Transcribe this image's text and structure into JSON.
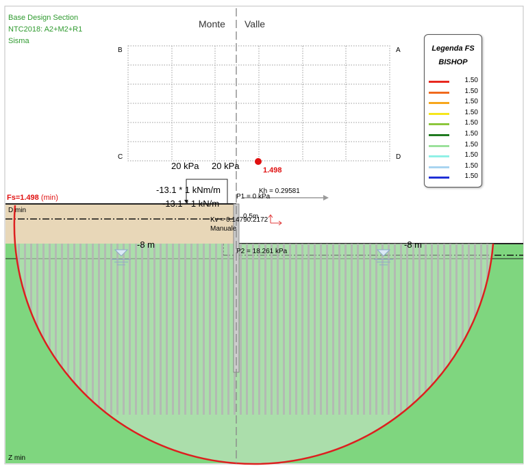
{
  "header": {
    "line1": "Base Design Section",
    "line2": "NTC2018: A2+M2+R1",
    "line3": "Sisma"
  },
  "side_labels": {
    "left": "Monte",
    "right": "Valle"
  },
  "grid_corners": {
    "a": "A",
    "b": "B",
    "c": "C",
    "d": "D"
  },
  "surcharge_left": "20 kPa",
  "surcharge_right": "20 kPa",
  "min_point_value": "1.498",
  "fs_label": {
    "value_text": "Fs=1.498",
    "suffix": "(min)"
  },
  "moment_label_1": "-13.1 * 1 kNm/m",
  "moment_label_2": "-13.1 * 1 kN/m",
  "p1_label": "P1 = 0 kPa",
  "kh_label": "Kh = 0.29581",
  "kv_label": "Kv = 0.14790.2172",
  "manuale_label": "Manuale",
  "dist_label": "0.5m",
  "depth_left": "-8 m",
  "depth_right": "-8 m",
  "p2_label": "P2 = 18.261 kPa",
  "d_min_label": "D min",
  "z_min_label": "Z min",
  "legend": {
    "title": "Legenda FS",
    "method": "BISHOP",
    "rows": [
      {
        "color": "#e8281e",
        "value": "1.50"
      },
      {
        "color": "#f06a1e",
        "value": "1.50"
      },
      {
        "color": "#f7a61c",
        "value": "1.50"
      },
      {
        "color": "#f5e61a",
        "value": "1.50"
      },
      {
        "color": "#8cc63c",
        "value": "1.50"
      },
      {
        "color": "#1f7a1f",
        "value": "1.50"
      },
      {
        "color": "#9be19b",
        "value": "1.50"
      },
      {
        "color": "#8ff0e6",
        "value": "1.50"
      },
      {
        "color": "#a8d4f0",
        "value": "1.50"
      },
      {
        "color": "#1f2fd6",
        "value": "1.50"
      }
    ]
  },
  "colors": {
    "soil_green": "#7fd67f",
    "soil_tan": "#e8d7b8",
    "surface_red": "#dd1f1f",
    "stripe_gray": "#b4b4b4"
  }
}
